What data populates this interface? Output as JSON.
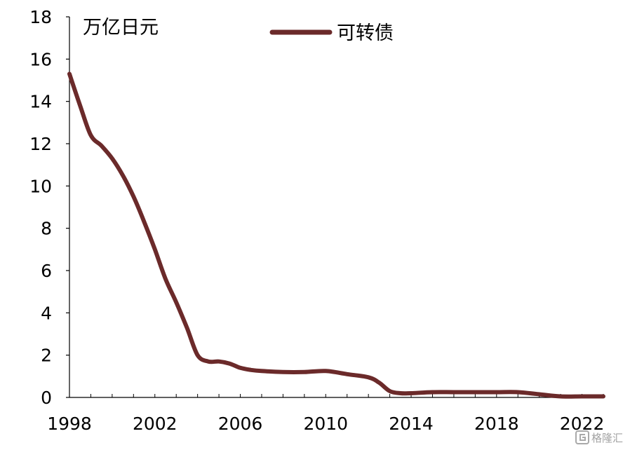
{
  "chart_data": {
    "type": "line",
    "unit_label": "万亿日元",
    "x": [
      1998,
      1998.5,
      1999,
      1999.5,
      2000,
      2000.5,
      2001,
      2001.5,
      2002,
      2002.5,
      2003,
      2003.5,
      2004,
      2004.5,
      2005,
      2005.5,
      2006,
      2006.5,
      2007,
      2008,
      2009,
      2010,
      2011,
      2012,
      2012.5,
      2013,
      2013.5,
      2014,
      2015,
      2016,
      2017,
      2018,
      2019,
      2020,
      2021,
      2022,
      2023
    ],
    "series": [
      {
        "name": "可转债",
        "color": "#6b2a2a",
        "values": [
          15.3,
          13.8,
          12.4,
          11.9,
          11.3,
          10.5,
          9.5,
          8.3,
          7.0,
          5.6,
          4.5,
          3.3,
          2.0,
          1.7,
          1.7,
          1.6,
          1.4,
          1.3,
          1.25,
          1.2,
          1.2,
          1.25,
          1.1,
          0.95,
          0.7,
          0.3,
          0.2,
          0.2,
          0.25,
          0.25,
          0.25,
          0.25,
          0.25,
          0.15,
          0.05,
          0.05,
          0.05
        ]
      }
    ],
    "xlim": [
      1998,
      2023
    ],
    "ylim": [
      0,
      18
    ],
    "yticks": [
      "0",
      "2",
      "4",
      "6",
      "8",
      "10",
      "12",
      "14",
      "16",
      "18"
    ],
    "xticks": [
      "1998",
      "2002",
      "2006",
      "2010",
      "2014",
      "2018",
      "2022"
    ],
    "xtick_values": [
      1998,
      2002,
      2006,
      2010,
      2014,
      2018,
      2022
    ],
    "ytick_values": [
      0,
      2,
      4,
      6,
      8,
      10,
      12,
      14,
      16,
      18
    ],
    "grid": false,
    "legend_position": "top-center"
  },
  "watermark": {
    "text": "格隆汇",
    "logo_icon": "glh-logo-icon"
  }
}
